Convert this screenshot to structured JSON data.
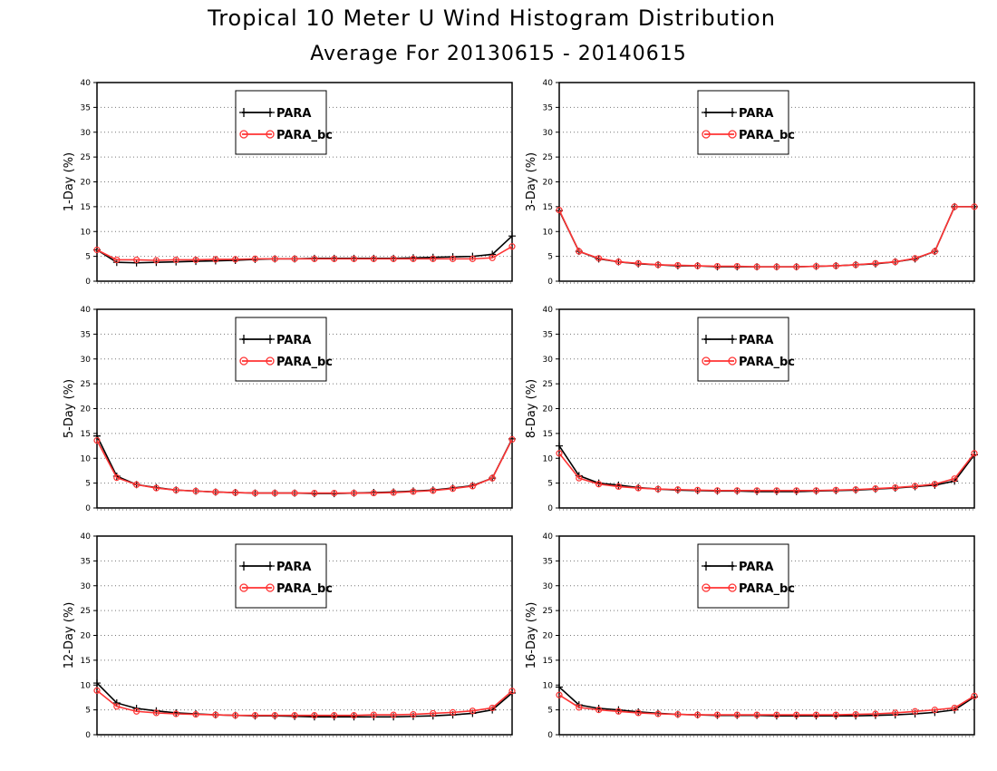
{
  "title": "Tropical 10 Meter U Wind Histogram Distribution",
  "subtitle": "Average For 20130615 - 20140615",
  "colors": {
    "PARA": "#000000",
    "PARA_bc": "#ff3333"
  },
  "chart_data": [
    {
      "type": "line",
      "ylabel": "1-Day (%)",
      "ylim": [
        0,
        40
      ],
      "yticks": [
        "0",
        "5",
        "10",
        "15",
        "20",
        "25",
        "30",
        "35",
        "40"
      ],
      "grid": true,
      "legend": "top-center",
      "x": [
        1,
        2,
        3,
        4,
        5,
        6,
        7,
        8,
        9,
        10,
        11,
        12,
        13,
        14,
        15,
        16,
        17,
        18,
        19,
        20,
        21,
        22
      ],
      "series": [
        {
          "name": "PARA",
          "marker": "plus",
          "values": [
            6.3,
            3.8,
            3.7,
            3.8,
            3.9,
            4.0,
            4.1,
            4.2,
            4.4,
            4.5,
            4.5,
            4.6,
            4.6,
            4.6,
            4.6,
            4.6,
            4.7,
            4.8,
            4.9,
            5.0,
            5.4,
            9.1
          ]
        },
        {
          "name": "PARA_bc",
          "marker": "circle",
          "values": [
            6.3,
            4.3,
            4.3,
            4.2,
            4.3,
            4.3,
            4.4,
            4.4,
            4.5,
            4.5,
            4.5,
            4.5,
            4.5,
            4.5,
            4.5,
            4.5,
            4.5,
            4.5,
            4.5,
            4.5,
            4.7,
            7.0
          ]
        }
      ]
    },
    {
      "type": "line",
      "ylabel": "3-Day (%)",
      "ylim": [
        0,
        40
      ],
      "yticks": [
        "0",
        "5",
        "10",
        "15",
        "20",
        "25",
        "30",
        "35",
        "40"
      ],
      "grid": true,
      "legend": "top-center",
      "x": [
        1,
        2,
        3,
        4,
        5,
        6,
        7,
        8,
        9,
        10,
        11,
        12,
        13,
        14,
        15,
        16,
        17,
        18,
        19,
        20,
        21,
        22
      ],
      "series": [
        {
          "name": "PARA",
          "marker": "plus",
          "values": [
            14.2,
            6.0,
            4.5,
            3.9,
            3.5,
            3.3,
            3.1,
            3.1,
            2.9,
            2.9,
            2.9,
            2.9,
            2.9,
            3.0,
            3.1,
            3.3,
            3.5,
            3.9,
            4.5,
            6.0,
            15.0,
            15.0
          ]
        },
        {
          "name": "PARA_bc",
          "marker": "circle",
          "values": [
            14.3,
            6.0,
            4.6,
            3.9,
            3.6,
            3.3,
            3.2,
            3.1,
            3.0,
            3.0,
            2.9,
            2.9,
            2.9,
            3.0,
            3.1,
            3.3,
            3.6,
            3.9,
            4.6,
            6.0,
            15.0,
            15.0
          ]
        }
      ]
    },
    {
      "type": "line",
      "ylabel": "5-Day (%)",
      "ylim": [
        0,
        40
      ],
      "yticks": [
        "0",
        "5",
        "10",
        "15",
        "20",
        "25",
        "30",
        "35",
        "40"
      ],
      "grid": true,
      "legend": "top-center",
      "x": [
        1,
        2,
        3,
        4,
        5,
        6,
        7,
        8,
        9,
        10,
        11,
        12,
        13,
        14,
        15,
        16,
        17,
        18,
        19,
        20,
        21,
        22
      ],
      "series": [
        {
          "name": "PARA",
          "marker": "plus",
          "values": [
            14.5,
            6.4,
            4.7,
            4.1,
            3.6,
            3.4,
            3.2,
            3.1,
            3.0,
            3.0,
            3.0,
            2.9,
            2.9,
            3.0,
            3.1,
            3.2,
            3.4,
            3.6,
            4.0,
            4.5,
            6.0,
            13.9
          ]
        },
        {
          "name": "PARA_bc",
          "marker": "circle",
          "values": [
            13.6,
            6.1,
            4.7,
            4.0,
            3.6,
            3.4,
            3.2,
            3.1,
            3.0,
            3.0,
            3.0,
            3.0,
            3.0,
            3.0,
            3.0,
            3.1,
            3.3,
            3.5,
            3.9,
            4.4,
            6.0,
            13.8
          ]
        }
      ]
    },
    {
      "type": "line",
      "ylabel": "8-Day (%)",
      "ylim": [
        0,
        40
      ],
      "yticks": [
        "0",
        "5",
        "10",
        "15",
        "20",
        "25",
        "30",
        "35",
        "40"
      ],
      "grid": true,
      "legend": "top-center",
      "x": [
        1,
        2,
        3,
        4,
        5,
        6,
        7,
        8,
        9,
        10,
        11,
        12,
        13,
        14,
        15,
        16,
        17,
        18,
        19,
        20,
        21,
        22
      ],
      "series": [
        {
          "name": "PARA",
          "marker": "plus",
          "values": [
            12.5,
            6.5,
            5.0,
            4.6,
            4.1,
            3.8,
            3.6,
            3.5,
            3.4,
            3.4,
            3.3,
            3.3,
            3.3,
            3.4,
            3.5,
            3.6,
            3.8,
            4.0,
            4.3,
            4.6,
            5.4,
            10.7
          ]
        },
        {
          "name": "PARA_bc",
          "marker": "circle",
          "values": [
            11.0,
            6.0,
            4.8,
            4.3,
            4.0,
            3.8,
            3.7,
            3.6,
            3.5,
            3.5,
            3.5,
            3.5,
            3.5,
            3.5,
            3.6,
            3.7,
            3.9,
            4.1,
            4.4,
            4.8,
            5.9,
            11.0
          ]
        }
      ]
    },
    {
      "type": "line",
      "ylabel": "12-Day (%)",
      "ylim": [
        0,
        40
      ],
      "yticks": [
        "0",
        "5",
        "10",
        "15",
        "20",
        "25",
        "30",
        "35",
        "40"
      ],
      "grid": true,
      "legend": "top-center",
      "x": [
        1,
        2,
        3,
        4,
        5,
        6,
        7,
        8,
        9,
        10,
        11,
        12,
        13,
        14,
        15,
        16,
        17,
        18,
        19,
        20,
        21,
        22
      ],
      "series": [
        {
          "name": "PARA",
          "marker": "plus",
          "values": [
            10.4,
            6.4,
            5.3,
            4.8,
            4.4,
            4.2,
            4.0,
            3.9,
            3.8,
            3.8,
            3.7,
            3.6,
            3.6,
            3.6,
            3.6,
            3.6,
            3.7,
            3.8,
            4.0,
            4.3,
            5.0,
            8.4
          ]
        },
        {
          "name": "PARA_bc",
          "marker": "circle",
          "values": [
            8.9,
            5.7,
            4.7,
            4.4,
            4.2,
            4.1,
            4.0,
            3.9,
            3.9,
            3.9,
            3.9,
            3.9,
            3.9,
            3.9,
            4.0,
            4.0,
            4.1,
            4.3,
            4.5,
            4.8,
            5.4,
            8.8
          ]
        }
      ]
    },
    {
      "type": "line",
      "ylabel": "16-Day (%)",
      "ylim": [
        0,
        40
      ],
      "yticks": [
        "0",
        "5",
        "10",
        "15",
        "20",
        "25",
        "30",
        "35",
        "40"
      ],
      "grid": true,
      "legend": "top-center",
      "x": [
        1,
        2,
        3,
        4,
        5,
        6,
        7,
        8,
        9,
        10,
        11,
        12,
        13,
        14,
        15,
        16,
        17,
        18,
        19,
        20,
        21,
        22
      ],
      "series": [
        {
          "name": "PARA",
          "marker": "plus",
          "values": [
            9.6,
            6.0,
            5.3,
            5.0,
            4.6,
            4.3,
            4.1,
            4.0,
            3.9,
            3.9,
            3.9,
            3.8,
            3.8,
            3.8,
            3.8,
            3.8,
            3.9,
            4.0,
            4.2,
            4.5,
            5.0,
            7.6
          ]
        },
        {
          "name": "PARA_bc",
          "marker": "circle",
          "values": [
            8.0,
            5.5,
            5.0,
            4.7,
            4.4,
            4.2,
            4.1,
            4.0,
            4.0,
            4.0,
            4.0,
            4.0,
            4.0,
            4.0,
            4.0,
            4.1,
            4.2,
            4.4,
            4.7,
            5.0,
            5.4,
            7.8
          ]
        }
      ]
    }
  ]
}
